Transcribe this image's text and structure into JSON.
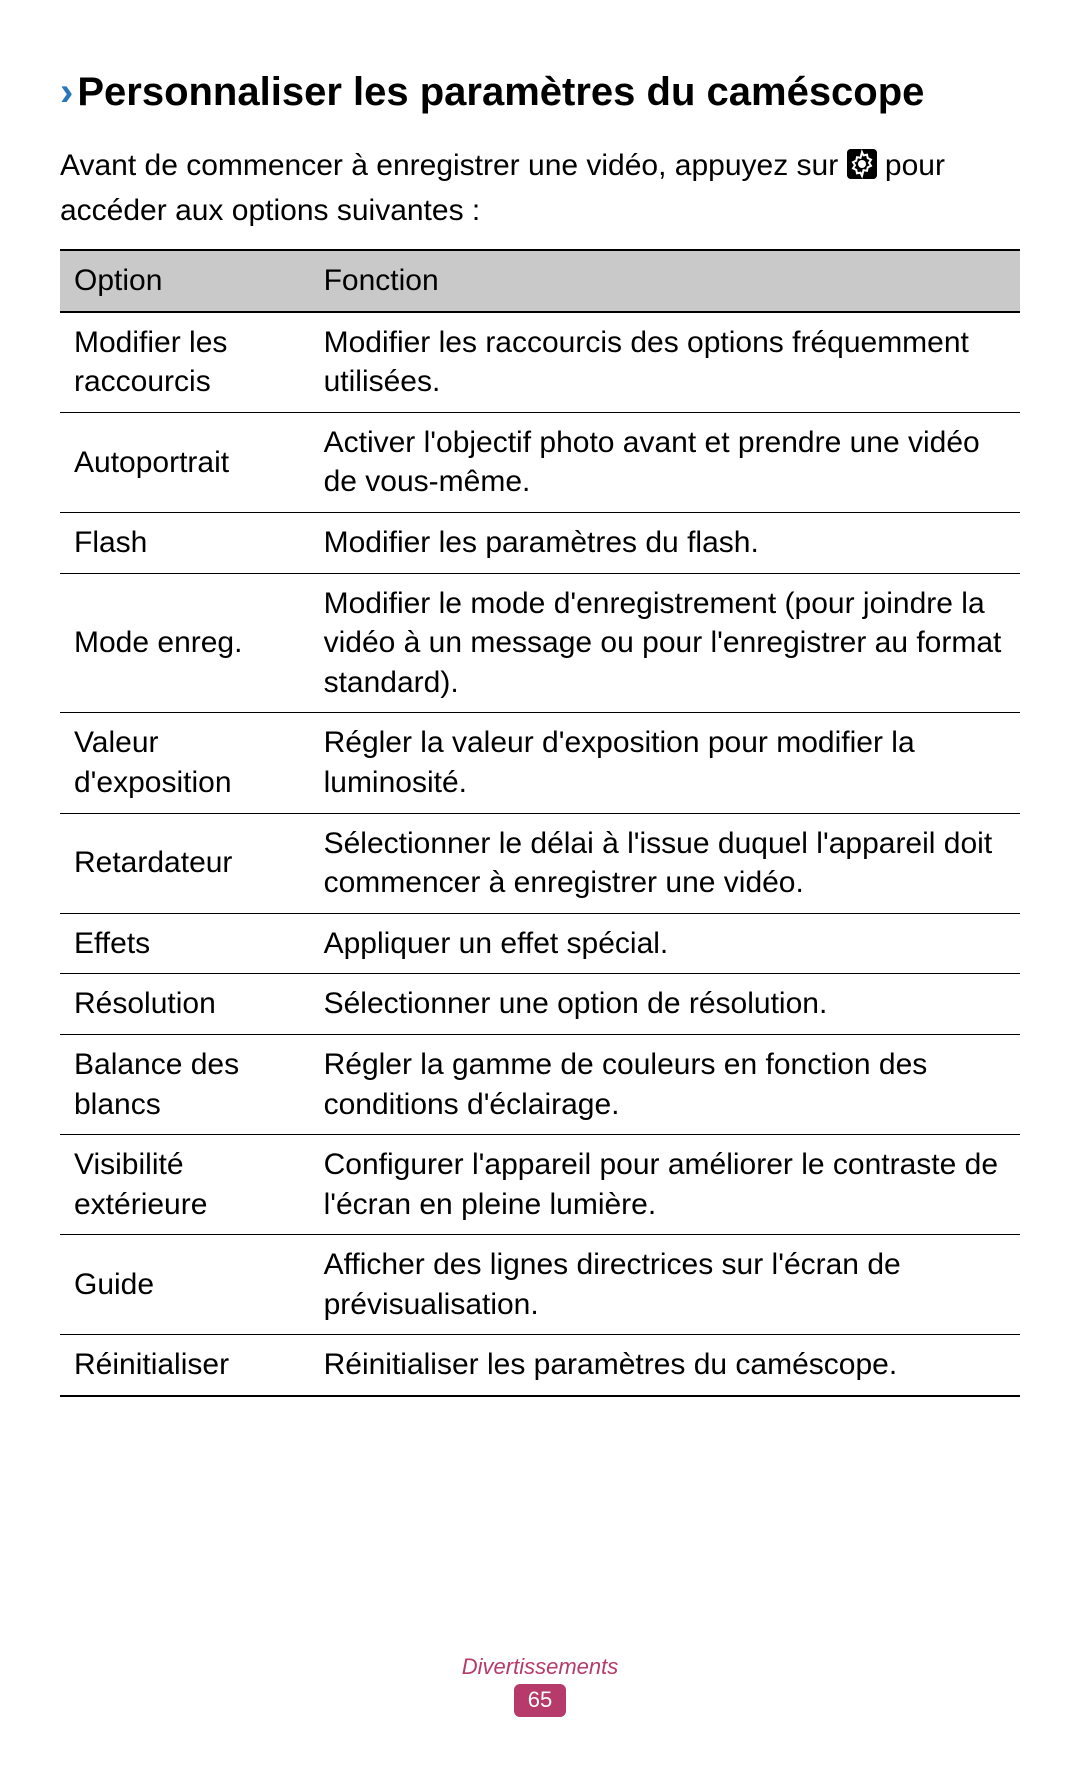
{
  "heading": {
    "chevron": "›",
    "text": "Personnaliser les paramètres du caméscope"
  },
  "intro": {
    "before_icon": "Avant de commencer à enregistrer une vidéo, appuyez sur ",
    "after_icon": " pour accéder aux options suivantes :",
    "icon_name": "gear-icon",
    "icon_bg": "#000000",
    "icon_fg": "#ffffff"
  },
  "table": {
    "columns": [
      "Option",
      "Fonction"
    ],
    "rows": [
      {
        "option": "Modifier les raccourcis",
        "fonction": "Modifier les raccourcis des options fréquemment utilisées."
      },
      {
        "option": "Autoportrait",
        "fonction": "Activer l'objectif photo avant et prendre une vidéo de vous-même."
      },
      {
        "option": "Flash",
        "fonction": "Modifier les paramètres du flash."
      },
      {
        "option": "Mode enreg.",
        "fonction": "Modifier le mode d'enregistrement (pour joindre la vidéo à un message ou pour l'enregistrer au format standard)."
      },
      {
        "option": "Valeur d'exposition",
        "fonction": "Régler la valeur d'exposition pour modifier la luminosité."
      },
      {
        "option": "Retardateur",
        "fonction": "Sélectionner le délai à l'issue duquel l'appareil doit commencer à enregistrer une vidéo."
      },
      {
        "option": "Effets",
        "fonction": "Appliquer un effet spécial."
      },
      {
        "option": "Résolution",
        "fonction": "Sélectionner une option de résolution."
      },
      {
        "option": "Balance des blancs",
        "fonction": "Régler la gamme de couleurs en fonction des conditions d'éclairage."
      },
      {
        "option": "Visibilité extérieure",
        "fonction": "Configurer l'appareil pour améliorer le contraste de l'écran en pleine lumière."
      },
      {
        "option": "Guide",
        "fonction": "Afficher des lignes directrices sur l'écran de prévisualisation."
      },
      {
        "option": "Réinitialiser",
        "fonction": "Réinitialiser les paramètres du caméscope."
      }
    ]
  },
  "footer": {
    "section_label": "Divertissements",
    "page_number": "65",
    "label_color": "#b63a6a",
    "badge_bg": "#b63a6a",
    "badge_fg": "#ffffff"
  }
}
